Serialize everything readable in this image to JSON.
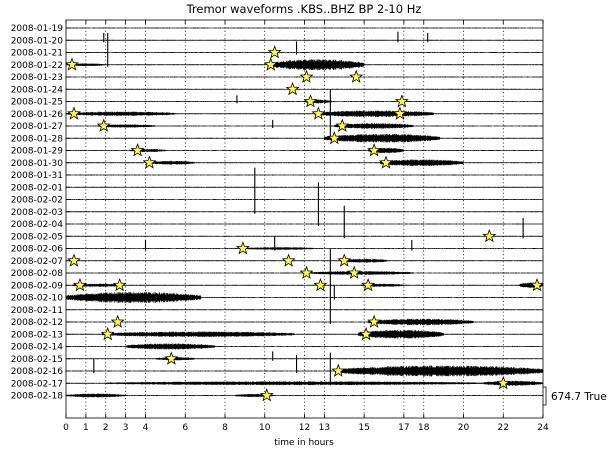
{
  "chart_data": {
    "type": "line",
    "title": "Tremor waveforms .KBS..BHZ BP 2-10 Hz",
    "xlabel": "time in hours",
    "xlim": [
      0,
      24
    ],
    "x_ticks": [
      0,
      1,
      2,
      3,
      4,
      6,
      8,
      10,
      12,
      13,
      15,
      17,
      18,
      20,
      22,
      24
    ],
    "x_tick_labels": [
      "0",
      "1",
      "2",
      "3",
      "4",
      "6",
      "8",
      "10",
      "12",
      "13",
      "15",
      "17",
      "18",
      "20",
      "22",
      "24"
    ],
    "grid": "vertical dotted",
    "scale_label": "674.7 True",
    "trace_color": "#000000",
    "marker_color": "#ffff33",
    "traces": [
      {
        "date": "2008-01-19",
        "bursts": [],
        "stars": []
      },
      {
        "date": "2008-01-20",
        "bursts": [],
        "stars": []
      },
      {
        "date": "2008-01-21",
        "bursts": [],
        "stars": [
          10.5
        ]
      },
      {
        "date": "2008-01-22",
        "bursts": [
          {
            "start": 10.3,
            "end": 15.0,
            "amp": 1.0
          },
          {
            "start": 0.0,
            "end": 2.0,
            "amp": 0.25
          }
        ],
        "stars": [
          0.3,
          10.3
        ]
      },
      {
        "date": "2008-01-23",
        "bursts": [],
        "stars": [
          12.1,
          14.6
        ]
      },
      {
        "date": "2008-01-24",
        "bursts": [],
        "stars": [
          11.4
        ]
      },
      {
        "date": "2008-01-25",
        "bursts": [
          {
            "start": 12.0,
            "end": 13.4,
            "amp": 0.35
          }
        ],
        "stars": [
          12.3,
          16.9
        ]
      },
      {
        "date": "2008-01-26",
        "bursts": [
          {
            "start": 0.0,
            "end": 5.5,
            "amp": 0.4
          },
          {
            "start": 12.5,
            "end": 18.5,
            "amp": 0.6
          }
        ],
        "stars": [
          0.4,
          12.7,
          16.8
        ]
      },
      {
        "date": "2008-01-27",
        "bursts": [
          {
            "start": 1.6,
            "end": 4.5,
            "amp": 0.3
          },
          {
            "start": 13.5,
            "end": 17.5,
            "amp": 0.5
          }
        ],
        "stars": [
          1.9,
          13.9
        ]
      },
      {
        "date": "2008-01-28",
        "bursts": [
          {
            "start": 13.0,
            "end": 18.8,
            "amp": 0.8
          }
        ],
        "stars": [
          13.5
        ]
      },
      {
        "date": "2008-01-29",
        "bursts": [
          {
            "start": 3.2,
            "end": 5.0,
            "amp": 0.3
          },
          {
            "start": 15.2,
            "end": 17.0,
            "amp": 0.5
          }
        ],
        "stars": [
          3.6,
          15.5
        ]
      },
      {
        "date": "2008-01-30",
        "bursts": [
          {
            "start": 4.2,
            "end": 6.5,
            "amp": 0.35
          },
          {
            "start": 15.8,
            "end": 20.0,
            "amp": 0.6
          }
        ],
        "stars": [
          4.2,
          16.1
        ]
      },
      {
        "date": "2008-01-31",
        "bursts": [],
        "stars": []
      },
      {
        "date": "2008-02-01",
        "bursts": [],
        "stars": []
      },
      {
        "date": "2008-02-02",
        "bursts": [],
        "stars": []
      },
      {
        "date": "2008-02-03",
        "bursts": [],
        "stars": []
      },
      {
        "date": "2008-02-04",
        "bursts": [],
        "stars": []
      },
      {
        "date": "2008-02-05",
        "bursts": [],
        "stars": [
          21.3
        ]
      },
      {
        "date": "2008-02-06",
        "bursts": [
          {
            "start": 9.0,
            "end": 12.5,
            "amp": 0.25
          }
        ],
        "stars": [
          8.9
        ]
      },
      {
        "date": "2008-02-07",
        "bursts": [
          {
            "start": 13.8,
            "end": 16.2,
            "amp": 0.35
          }
        ],
        "stars": [
          0.4,
          11.2,
          14.0
        ]
      },
      {
        "date": "2008-02-08",
        "bursts": [
          {
            "start": 12.3,
            "end": 17.5,
            "amp": 0.35
          }
        ],
        "stars": [
          12.1,
          14.5
        ]
      },
      {
        "date": "2008-02-09",
        "bursts": [
          {
            "start": 0.3,
            "end": 3.0,
            "amp": 0.3
          },
          {
            "start": 14.8,
            "end": 17.0,
            "amp": 0.3
          },
          {
            "start": 22.8,
            "end": 24.0,
            "amp": 0.5
          }
        ],
        "stars": [
          0.7,
          2.7,
          12.8,
          15.2,
          23.7
        ]
      },
      {
        "date": "2008-02-10",
        "bursts": [
          {
            "start": 0.0,
            "end": 6.8,
            "amp": 1.0
          }
        ],
        "stars": []
      },
      {
        "date": "2008-02-11",
        "bursts": [],
        "stars": []
      },
      {
        "date": "2008-02-12",
        "bursts": [
          {
            "start": 15.2,
            "end": 20.5,
            "amp": 0.6
          }
        ],
        "stars": [
          2.6,
          15.5
        ]
      },
      {
        "date": "2008-02-13",
        "bursts": [
          {
            "start": 1.8,
            "end": 11.5,
            "amp": 0.5
          },
          {
            "start": 14.7,
            "end": 19.0,
            "amp": 0.8
          }
        ],
        "stars": [
          2.1,
          15.1
        ]
      },
      {
        "date": "2008-02-14",
        "bursts": [
          {
            "start": 3.0,
            "end": 7.5,
            "amp": 0.55
          }
        ],
        "stars": []
      },
      {
        "date": "2008-02-15",
        "bursts": [
          {
            "start": 4.5,
            "end": 6.5,
            "amp": 0.3
          }
        ],
        "stars": [
          5.3
        ]
      },
      {
        "date": "2008-02-16",
        "bursts": [
          {
            "start": 13.7,
            "end": 24.0,
            "amp": 1.0
          }
        ],
        "stars": [
          13.7
        ]
      },
      {
        "date": "2008-02-17",
        "bursts": [
          {
            "start": 2.0,
            "end": 21.0,
            "amp": 0.35
          },
          {
            "start": 21.0,
            "end": 24.0,
            "amp": 0.45
          }
        ],
        "stars": [
          22.0
        ]
      },
      {
        "date": "2008-02-18",
        "bursts": [
          {
            "start": 0.0,
            "end": 3.0,
            "amp": 0.35
          },
          {
            "start": 8.5,
            "end": 10.5,
            "amp": 0.3
          }
        ],
        "stars": [
          10.1
        ]
      }
    ],
    "spikes": [
      {
        "trace": 1,
        "x": 1.9,
        "amp": 0.6
      },
      {
        "trace": 1,
        "x": 16.7,
        "amp": 0.7
      },
      {
        "trace": 1,
        "x": 18.2,
        "amp": 0.6
      },
      {
        "trace": 2,
        "x": 11.6,
        "amp": 0.9
      },
      {
        "trace": 3,
        "x": 2.1,
        "amp": 2.6
      },
      {
        "trace": 6,
        "x": 8.6,
        "amp": 0.5
      },
      {
        "trace": 8,
        "x": 10.4,
        "amp": 0.5
      },
      {
        "trace": 9,
        "x": 13.3,
        "amp": 4.0
      },
      {
        "trace": 15,
        "x": 9.5,
        "amp": 3.6
      },
      {
        "trace": 16,
        "x": 12.7,
        "amp": 3.4
      },
      {
        "trace": 17,
        "x": 14.0,
        "amp": 2.5
      },
      {
        "trace": 17,
        "x": 23.0,
        "amp": 1.5
      },
      {
        "trace": 18,
        "x": 4.0,
        "amp": 0.7
      },
      {
        "trace": 18,
        "x": 10.5,
        "amp": 1.0
      },
      {
        "trace": 18,
        "x": 17.4,
        "amp": 0.7
      },
      {
        "trace": 22,
        "x": 13.5,
        "amp": 1.0
      },
      {
        "trace": 24,
        "x": 13.3,
        "amp": 6.0
      },
      {
        "trace": 27,
        "x": 10.4,
        "amp": 0.6
      },
      {
        "trace": 28,
        "x": 1.4,
        "amp": 1.0
      },
      {
        "trace": 28,
        "x": 11.6,
        "amp": 1.3
      },
      {
        "trace": 29,
        "x": 13.3,
        "amp": 2.5
      }
    ]
  }
}
